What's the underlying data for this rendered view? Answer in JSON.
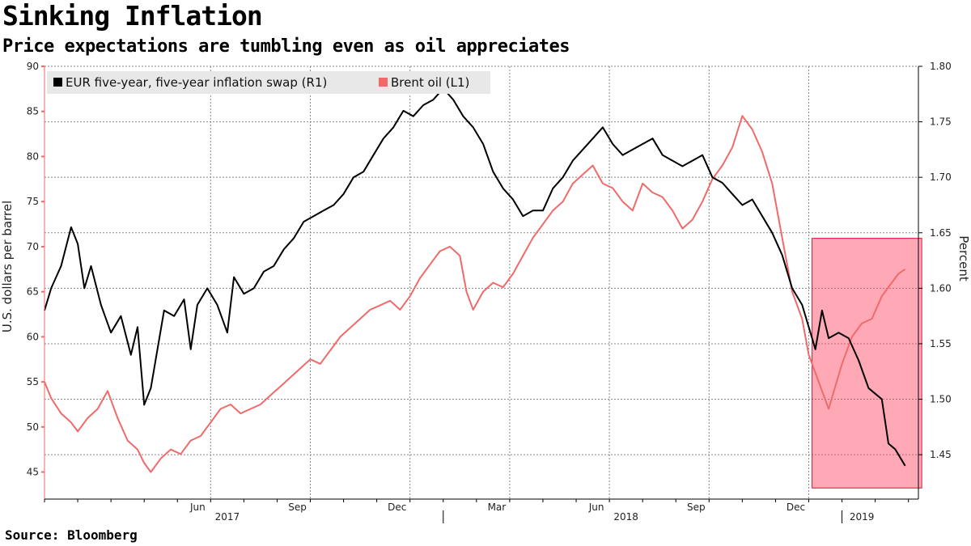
{
  "chart_data": {
    "type": "line",
    "title": "Sinking Inflation",
    "subtitle": "Price expectations are tumbling even as oil appreciates",
    "source": "Source: Bloomberg",
    "left_axis": {
      "label": "U.S. dollars per barrel",
      "range": [
        42,
        90
      ],
      "ticks": [
        45,
        50,
        55,
        60,
        65,
        70,
        75,
        80,
        85,
        90
      ],
      "color": "#f06a6a"
    },
    "right_axis": {
      "label": "Percent",
      "range": [
        1.41,
        1.8
      ],
      "ticks": [
        "1.45",
        "1.50",
        "1.55",
        "1.60",
        "1.65",
        "1.70",
        "1.75",
        "1.80"
      ]
    },
    "x_axis": {
      "start_month": 0,
      "end_month": 25.9,
      "months": [
        "Jun",
        "Sep",
        "Dec",
        "Mar",
        "Jun",
        "Sep",
        "Dec"
      ],
      "month_positions": [
        5,
        8,
        11,
        14,
        17,
        20,
        23
      ],
      "years": [
        "2017",
        "2018",
        "2019"
      ],
      "year_centers": [
        5.5,
        17.5,
        24.6
      ],
      "year_boundaries": [
        0,
        12,
        24
      ]
    },
    "legend": [
      {
        "name": "EUR five-year, five-year inflation swap (R1)",
        "color": "#000000"
      },
      {
        "name": "Brent oil (L1)",
        "color": "#f06a6a"
      }
    ],
    "highlight": {
      "from_month": 23.1,
      "to_month": 26.4,
      "from_value_pct": 1.42,
      "to_value_pct": 1.645,
      "color": "#ff4060"
    },
    "series": [
      {
        "name": "EUR five-year, five-year inflation swap (R1)",
        "axis": "right",
        "color": "#000000",
        "points": [
          [
            0.0,
            1.58
          ],
          [
            0.2,
            1.6
          ],
          [
            0.5,
            1.62
          ],
          [
            0.8,
            1.655
          ],
          [
            1.0,
            1.64
          ],
          [
            1.2,
            1.6
          ],
          [
            1.4,
            1.62
          ],
          [
            1.7,
            1.585
          ],
          [
            2.0,
            1.56
          ],
          [
            2.3,
            1.575
          ],
          [
            2.6,
            1.54
          ],
          [
            2.8,
            1.565
          ],
          [
            3.0,
            1.495
          ],
          [
            3.2,
            1.51
          ],
          [
            3.4,
            1.545
          ],
          [
            3.6,
            1.58
          ],
          [
            3.9,
            1.575
          ],
          [
            4.2,
            1.59
          ],
          [
            4.4,
            1.545
          ],
          [
            4.6,
            1.585
          ],
          [
            4.9,
            1.6
          ],
          [
            5.2,
            1.585
          ],
          [
            5.5,
            1.56
          ],
          [
            5.7,
            1.61
          ],
          [
            6.0,
            1.595
          ],
          [
            6.3,
            1.6
          ],
          [
            6.6,
            1.615
          ],
          [
            6.9,
            1.62
          ],
          [
            7.2,
            1.635
          ],
          [
            7.5,
            1.645
          ],
          [
            7.8,
            1.66
          ],
          [
            8.1,
            1.665
          ],
          [
            8.4,
            1.67
          ],
          [
            8.7,
            1.675
          ],
          [
            9.0,
            1.685
          ],
          [
            9.3,
            1.7
          ],
          [
            9.6,
            1.705
          ],
          [
            9.9,
            1.72
          ],
          [
            10.2,
            1.735
          ],
          [
            10.5,
            1.745
          ],
          [
            10.8,
            1.76
          ],
          [
            11.1,
            1.755
          ],
          [
            11.4,
            1.765
          ],
          [
            11.7,
            1.77
          ],
          [
            12.0,
            1.78
          ],
          [
            12.3,
            1.77
          ],
          [
            12.6,
            1.755
          ],
          [
            12.9,
            1.745
          ],
          [
            13.2,
            1.73
          ],
          [
            13.5,
            1.705
          ],
          [
            13.8,
            1.69
          ],
          [
            14.1,
            1.68
          ],
          [
            14.4,
            1.665
          ],
          [
            14.7,
            1.67
          ],
          [
            15.0,
            1.67
          ],
          [
            15.3,
            1.69
          ],
          [
            15.6,
            1.7
          ],
          [
            15.9,
            1.715
          ],
          [
            16.2,
            1.725
          ],
          [
            16.5,
            1.735
          ],
          [
            16.8,
            1.745
          ],
          [
            17.1,
            1.73
          ],
          [
            17.4,
            1.72
          ],
          [
            17.7,
            1.725
          ],
          [
            18.0,
            1.73
          ],
          [
            18.3,
            1.735
          ],
          [
            18.6,
            1.72
          ],
          [
            18.9,
            1.715
          ],
          [
            19.2,
            1.71
          ],
          [
            19.5,
            1.715
          ],
          [
            19.8,
            1.72
          ],
          [
            20.1,
            1.7
          ],
          [
            20.4,
            1.695
          ],
          [
            20.7,
            1.685
          ],
          [
            21.0,
            1.675
          ],
          [
            21.3,
            1.68
          ],
          [
            21.6,
            1.665
          ],
          [
            21.9,
            1.65
          ],
          [
            22.2,
            1.63
          ],
          [
            22.5,
            1.6
          ],
          [
            22.8,
            1.585
          ],
          [
            23.0,
            1.565
          ],
          [
            23.2,
            1.545
          ],
          [
            23.4,
            1.58
          ],
          [
            23.6,
            1.555
          ],
          [
            23.9,
            1.56
          ],
          [
            24.2,
            1.555
          ],
          [
            24.5,
            1.535
          ],
          [
            24.8,
            1.51
          ],
          [
            25.0,
            1.505
          ],
          [
            25.2,
            1.5
          ],
          [
            25.4,
            1.46
          ],
          [
            25.6,
            1.455
          ],
          [
            25.9,
            1.44
          ]
        ]
      },
      {
        "name": "Brent oil (L1)",
        "axis": "left",
        "color": "#f06a6a",
        "points": [
          [
            0.0,
            55.0
          ],
          [
            0.2,
            53.2
          ],
          [
            0.5,
            51.5
          ],
          [
            0.8,
            50.5
          ],
          [
            1.0,
            49.5
          ],
          [
            1.3,
            51.0
          ],
          [
            1.6,
            52.0
          ],
          [
            1.9,
            54.0
          ],
          [
            2.2,
            51.0
          ],
          [
            2.5,
            48.5
          ],
          [
            2.8,
            47.5
          ],
          [
            3.0,
            46.0
          ],
          [
            3.2,
            45.0
          ],
          [
            3.5,
            46.5
          ],
          [
            3.8,
            47.5
          ],
          [
            4.1,
            47.0
          ],
          [
            4.4,
            48.5
          ],
          [
            4.7,
            49.0
          ],
          [
            5.0,
            50.5
          ],
          [
            5.3,
            52.0
          ],
          [
            5.6,
            52.5
          ],
          [
            5.9,
            51.5
          ],
          [
            6.2,
            52.0
          ],
          [
            6.5,
            52.5
          ],
          [
            6.8,
            53.5
          ],
          [
            7.1,
            54.5
          ],
          [
            7.4,
            55.5
          ],
          [
            7.7,
            56.5
          ],
          [
            8.0,
            57.5
          ],
          [
            8.3,
            57.0
          ],
          [
            8.6,
            58.5
          ],
          [
            8.9,
            60.0
          ],
          [
            9.2,
            61.0
          ],
          [
            9.5,
            62.0
          ],
          [
            9.8,
            63.0
          ],
          [
            10.1,
            63.5
          ],
          [
            10.4,
            64.0
          ],
          [
            10.7,
            63.0
          ],
          [
            11.0,
            64.5
          ],
          [
            11.3,
            66.5
          ],
          [
            11.6,
            68.0
          ],
          [
            11.9,
            69.5
          ],
          [
            12.2,
            70.0
          ],
          [
            12.5,
            69.0
          ],
          [
            12.7,
            65.0
          ],
          [
            12.9,
            63.0
          ],
          [
            13.2,
            65.0
          ],
          [
            13.5,
            66.0
          ],
          [
            13.8,
            65.5
          ],
          [
            14.1,
            67.0
          ],
          [
            14.4,
            69.0
          ],
          [
            14.7,
            71.0
          ],
          [
            15.0,
            72.5
          ],
          [
            15.3,
            74.0
          ],
          [
            15.6,
            75.0
          ],
          [
            15.9,
            77.0
          ],
          [
            16.2,
            78.0
          ],
          [
            16.5,
            79.0
          ],
          [
            16.8,
            77.0
          ],
          [
            17.1,
            76.5
          ],
          [
            17.4,
            75.0
          ],
          [
            17.7,
            74.0
          ],
          [
            18.0,
            77.0
          ],
          [
            18.3,
            76.0
          ],
          [
            18.6,
            75.5
          ],
          [
            18.9,
            74.0
          ],
          [
            19.2,
            72.0
          ],
          [
            19.5,
            73.0
          ],
          [
            19.8,
            75.0
          ],
          [
            20.1,
            77.5
          ],
          [
            20.4,
            79.0
          ],
          [
            20.7,
            81.0
          ],
          [
            21.0,
            84.5
          ],
          [
            21.3,
            83.0
          ],
          [
            21.6,
            80.5
          ],
          [
            21.9,
            77.0
          ],
          [
            22.2,
            71.0
          ],
          [
            22.5,
            65.0
          ],
          [
            22.8,
            62.0
          ],
          [
            23.0,
            58.0
          ],
          [
            23.2,
            56.0
          ],
          [
            23.4,
            54.0
          ],
          [
            23.6,
            52.0
          ],
          [
            23.8,
            54.5
          ],
          [
            24.0,
            57.0
          ],
          [
            24.3,
            60.0
          ],
          [
            24.6,
            61.5
          ],
          [
            24.9,
            62.0
          ],
          [
            25.2,
            64.5
          ],
          [
            25.5,
            66.0
          ],
          [
            25.7,
            67.0
          ],
          [
            25.9,
            67.5
          ]
        ]
      }
    ]
  }
}
